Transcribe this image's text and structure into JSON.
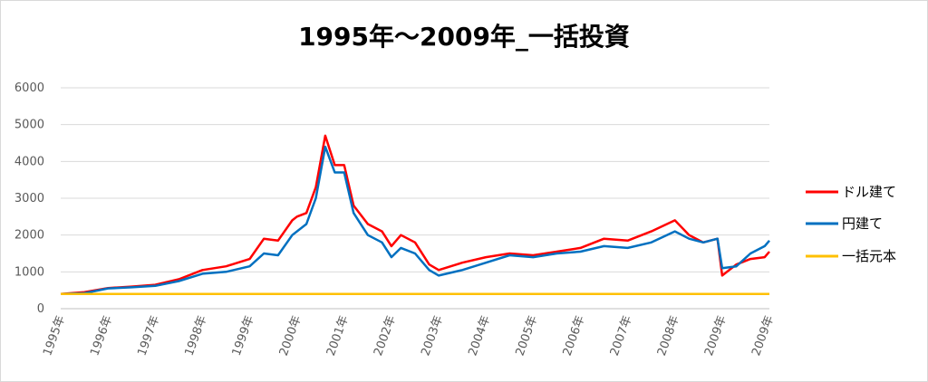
{
  "chart_data": {
    "type": "line",
    "title": "1995年～2009年_一括投資",
    "xlabel": "",
    "ylabel": "",
    "ylim": [
      0,
      6000
    ],
    "yticks": [
      0,
      1000,
      2000,
      3000,
      4000,
      5000,
      6000
    ],
    "grid": true,
    "legend_position": "right",
    "x_tick_labels": [
      "1995年",
      "1996年",
      "1997年",
      "1998年",
      "1999年",
      "2000年",
      "2001年",
      "2002年",
      "2003年",
      "2004年",
      "2005年",
      "2006年",
      "2007年",
      "2008年",
      "2009年",
      "2009年"
    ],
    "x": [
      1995.0,
      1995.5,
      1996.0,
      1996.5,
      1997.0,
      1997.5,
      1998.0,
      1998.5,
      1999.0,
      1999.3,
      1999.6,
      1999.9,
      2000.0,
      2000.2,
      2000.4,
      2000.6,
      2000.8,
      2001.0,
      2001.2,
      2001.5,
      2001.8,
      2002.0,
      2002.2,
      2002.5,
      2002.8,
      2003.0,
      2003.5,
      2004.0,
      2004.5,
      2005.0,
      2005.5,
      2006.0,
      2006.5,
      2007.0,
      2007.5,
      2008.0,
      2008.3,
      2008.6,
      2008.9,
      2009.0,
      2009.3,
      2009.6,
      2009.9,
      2010.0
    ],
    "series": [
      {
        "name": "ドル建て",
        "color": "#ff0000",
        "values": [
          400,
          450,
          560,
          600,
          650,
          800,
          1050,
          1150,
          1350,
          1900,
          1850,
          2400,
          2500,
          2600,
          3300,
          4700,
          3900,
          3900,
          2800,
          2300,
          2100,
          1700,
          2000,
          1800,
          1200,
          1050,
          1250,
          1400,
          1500,
          1450,
          1550,
          1650,
          1900,
          1850,
          2100,
          2400,
          2000,
          1800,
          1900,
          900,
          1200,
          1350,
          1400,
          1550
        ]
      },
      {
        "name": "円建て",
        "color": "#0070c0",
        "values": [
          400,
          420,
          550,
          580,
          620,
          750,
          950,
          1000,
          1150,
          1500,
          1450,
          2000,
          2100,
          2300,
          3000,
          4400,
          3700,
          3700,
          2600,
          2000,
          1800,
          1400,
          1650,
          1500,
          1050,
          900,
          1050,
          1250,
          1450,
          1400,
          1500,
          1550,
          1700,
          1650,
          1800,
          2100,
          1900,
          1800,
          1900,
          1100,
          1150,
          1500,
          1700,
          1850
        ]
      },
      {
        "name": "一括元本",
        "color": "#ffc000",
        "values": [
          400,
          400,
          400,
          400,
          400,
          400,
          400,
          400,
          400,
          400,
          400,
          400,
          400,
          400,
          400,
          400,
          400,
          400,
          400,
          400,
          400,
          400,
          400,
          400,
          400,
          400,
          400,
          400,
          400,
          400,
          400,
          400,
          400,
          400,
          400,
          400,
          400,
          400,
          400,
          400,
          400,
          400,
          400,
          400
        ]
      }
    ]
  }
}
